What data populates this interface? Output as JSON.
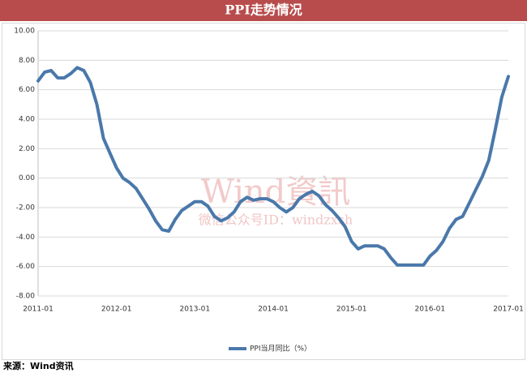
{
  "chart_data": {
    "type": "line",
    "title": "PPI走势情况",
    "x": [
      "2011-01",
      "2011-02",
      "2011-03",
      "2011-04",
      "2011-05",
      "2011-06",
      "2011-07",
      "2011-08",
      "2011-09",
      "2011-10",
      "2011-11",
      "2011-12",
      "2012-01",
      "2012-02",
      "2012-03",
      "2012-04",
      "2012-05",
      "2012-06",
      "2012-07",
      "2012-08",
      "2012-09",
      "2012-10",
      "2012-11",
      "2012-12",
      "2013-01",
      "2013-02",
      "2013-03",
      "2013-04",
      "2013-05",
      "2013-06",
      "2013-07",
      "2013-08",
      "2013-09",
      "2013-10",
      "2013-11",
      "2013-12",
      "2014-01",
      "2014-02",
      "2014-03",
      "2014-04",
      "2014-05",
      "2014-06",
      "2014-07",
      "2014-08",
      "2014-09",
      "2014-10",
      "2014-11",
      "2014-12",
      "2015-01",
      "2015-02",
      "2015-03",
      "2015-04",
      "2015-05",
      "2015-06",
      "2015-07",
      "2015-08",
      "2015-09",
      "2015-10",
      "2015-11",
      "2015-12",
      "2016-01",
      "2016-02",
      "2016-03",
      "2016-04",
      "2016-05",
      "2016-06",
      "2016-07",
      "2016-08",
      "2016-09",
      "2016-10",
      "2016-11",
      "2016-12",
      "2017-01"
    ],
    "series": [
      {
        "name": "PPI当月同比（%）",
        "color": "#4a78aa",
        "values": [
          6.6,
          7.2,
          7.3,
          6.8,
          6.8,
          7.1,
          7.5,
          7.3,
          6.5,
          5.0,
          2.7,
          1.7,
          0.7,
          0.0,
          -0.3,
          -0.7,
          -1.4,
          -2.1,
          -2.9,
          -3.5,
          -3.6,
          -2.8,
          -2.2,
          -1.9,
          -1.6,
          -1.6,
          -1.9,
          -2.6,
          -2.9,
          -2.7,
          -2.3,
          -1.6,
          -1.3,
          -1.5,
          -1.4,
          -1.4,
          -1.6,
          -2.0,
          -2.3,
          -2.0,
          -1.4,
          -1.1,
          -0.9,
          -1.2,
          -1.8,
          -2.2,
          -2.7,
          -3.3,
          -4.3,
          -4.8,
          -4.6,
          -4.6,
          -4.6,
          -4.8,
          -5.4,
          -5.9,
          -5.9,
          -5.9,
          -5.9,
          -5.9,
          -5.3,
          -4.9,
          -4.3,
          -3.4,
          -2.8,
          -2.6,
          -1.7,
          -0.8,
          0.1,
          1.2,
          3.3,
          5.5,
          6.9
        ]
      }
    ],
    "xticks": [
      "2011-01",
      "2012-01",
      "2013-01",
      "2014-01",
      "2015-01",
      "2016-01",
      "2017-01"
    ],
    "ylim": [
      -8,
      10
    ],
    "yticks": [
      {
        "value": -8,
        "label": "-8.00"
      },
      {
        "value": -6,
        "label": "-6.00"
      },
      {
        "value": -4,
        "label": "-4.00"
      },
      {
        "value": -2,
        "label": "-2.00"
      },
      {
        "value": 0,
        "label": "0.00"
      },
      {
        "value": 2,
        "label": "2.00"
      },
      {
        "value": 4,
        "label": "4.00"
      },
      {
        "value": 6,
        "label": "6.00"
      },
      {
        "value": 8,
        "label": "8.00"
      },
      {
        "value": 10,
        "label": "10.00"
      }
    ],
    "grid": true,
    "legend": "bottom",
    "annotations": [
      "Wind資訊",
      "微信公众号ID：windzxsh"
    ],
    "source": "来源：Wind资讯"
  }
}
